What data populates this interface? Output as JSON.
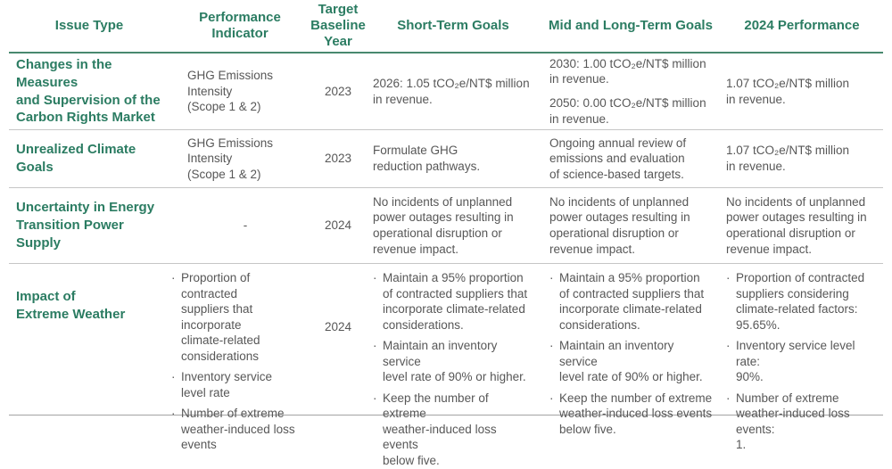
{
  "ui": {
    "bullet_char": "·",
    "accent_green": "#2b7c62",
    "body_gray": "#575757"
  },
  "table": {
    "headers": [
      "Issue Type",
      "Performance\nIndicator",
      "Target\nBaseline\nYear",
      "Short-Term Goals",
      "Mid and Long-Term Goals",
      "2024 Performance"
    ],
    "rows": [
      {
        "issue_type": "Changes in the Measures\nand Supervision of the\nCarbon Rights Market",
        "performance_indicator": "GHG Emissions\nIntensity\n(Scope 1 & 2)",
        "target_baseline_year": "2023",
        "short_term_goals": "2026: 1.05 tCO₂e/NT$ million\nin revenue.",
        "mid_long_term_goals": [
          "2030: 1.00 tCO₂e/NT$ million\nin revenue.",
          "2050: 0.00 tCO₂e/NT$ million\nin revenue."
        ],
        "performance_2024": "1.07 tCO₂e/NT$ million\nin revenue."
      },
      {
        "issue_type": "Unrealized Climate Goals",
        "performance_indicator": "GHG Emissions\nIntensity\n(Scope 1 & 2)",
        "target_baseline_year": "2023",
        "short_term_goals": "Formulate GHG\nreduction pathways.",
        "mid_long_term_goals": "Ongoing annual review of\nemissions and evaluation\nof science-based targets.",
        "performance_2024": "1.07 tCO₂e/NT$ million\nin revenue."
      },
      {
        "issue_type": "Uncertainty in Energy\nTransition Power Supply",
        "performance_indicator": "-",
        "target_baseline_year": "2024",
        "short_term_goals": "No incidents of unplanned\npower outages resulting in\noperational disruption or\nrevenue impact.",
        "mid_long_term_goals": "No incidents of unplanned\npower outages resulting in\noperational disruption or\nrevenue impact.",
        "performance_2024": "No incidents of unplanned\npower outages resulting in\noperational disruption or\nrevenue impact."
      },
      {
        "issue_type": "Impact of\nExtreme Weather",
        "performance_indicator_items": [
          "Proportion of contracted\nsuppliers that incorporate\nclimate-related\nconsiderations",
          "Inventory service\nlevel rate",
          "Number of extreme\nweather-induced loss\nevents"
        ],
        "target_baseline_year": "2024",
        "short_term_goals_items": [
          "Maintain a 95% proportion\nof contracted suppliers that\nincorporate climate-related\nconsiderations.",
          "Maintain an inventory service\nlevel rate of 90% or higher.",
          "Keep the number of extreme\nweather-induced loss events\nbelow five."
        ],
        "mid_long_term_goals_items": [
          "Maintain a 95% proportion\nof contracted suppliers that\nincorporate climate-related\nconsiderations.",
          "Maintain an inventory service\nlevel rate of 90% or higher.",
          "Keep the number of extreme\nweather-induced loss events\nbelow five."
        ],
        "performance_2024_items": [
          "Proportion of contracted\nsuppliers considering\nclimate-related factors:\n95.65%.",
          "Inventory service level rate:\n90%.",
          "Number of extreme\nweather-induced loss events:\n1."
        ]
      }
    ]
  }
}
